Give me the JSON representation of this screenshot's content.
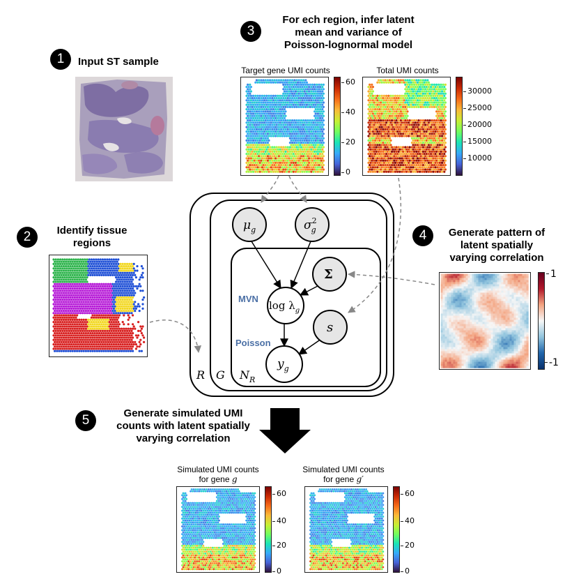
{
  "steps": [
    {
      "num": "1",
      "text": "Input ST sample"
    },
    {
      "num": "2",
      "text": "Identify tissue\nregions"
    },
    {
      "num": "3",
      "text": "For ech region, infer latent\nmean and variance of\nPoisson-lognormal model"
    },
    {
      "num": "4",
      "text": "Generate pattern of\nlatent spatially\nvarying correlation"
    },
    {
      "num": "5",
      "text": "Generate simulated UMI\ncounts with latent spatially\nvarying correlation"
    }
  ],
  "panels": {
    "target": {
      "title": "Target gene UMI counts",
      "ticks": [
        "60",
        "40",
        "20",
        "0"
      ]
    },
    "total": {
      "title": "Total UMI counts",
      "ticks": [
        "30000",
        "25000",
        "20000",
        "15000",
        "10000"
      ]
    },
    "correlation": {
      "ticks": [
        "1",
        "-1"
      ]
    },
    "sim_g": {
      "title": "Simulated UMI counts",
      "subtitle": "for gene",
      "gene": "g",
      "ticks": [
        "60",
        "40",
        "20",
        "0"
      ]
    },
    "sim_gp": {
      "title": "Simulated UMI counts",
      "subtitle": "for gene",
      "gene": "g′",
      "ticks": [
        "60",
        "40",
        "20",
        "0"
      ]
    }
  },
  "model": {
    "mu": "μ",
    "mu_sub": "g",
    "sigma": "σ",
    "sigma_sub": "g",
    "sigma_sup": "2",
    "Sigma": "Σ",
    "loglambda": "log λ",
    "loglambda_sub": "g",
    "s": "s",
    "y": "y",
    "y_sub": "g",
    "mvn_label": "MVN",
    "poisson_label": "Poisson",
    "plate_R": "R",
    "plate_G": "G",
    "plate_N": "N",
    "plate_N_sub": "R"
  },
  "colors": {
    "node_fill": "#e8e8e8",
    "label_blue": "#4a6fa5",
    "arrow_dash": "#888888"
  }
}
